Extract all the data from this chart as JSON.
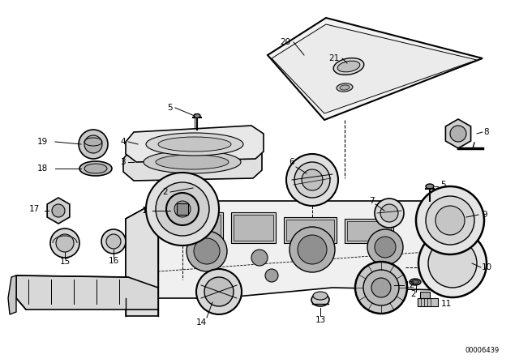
{
  "background_color": "#ffffff",
  "line_color": "#000000",
  "watermark": "00006439",
  "fig_w": 6.4,
  "fig_h": 4.48,
  "dpi": 100
}
